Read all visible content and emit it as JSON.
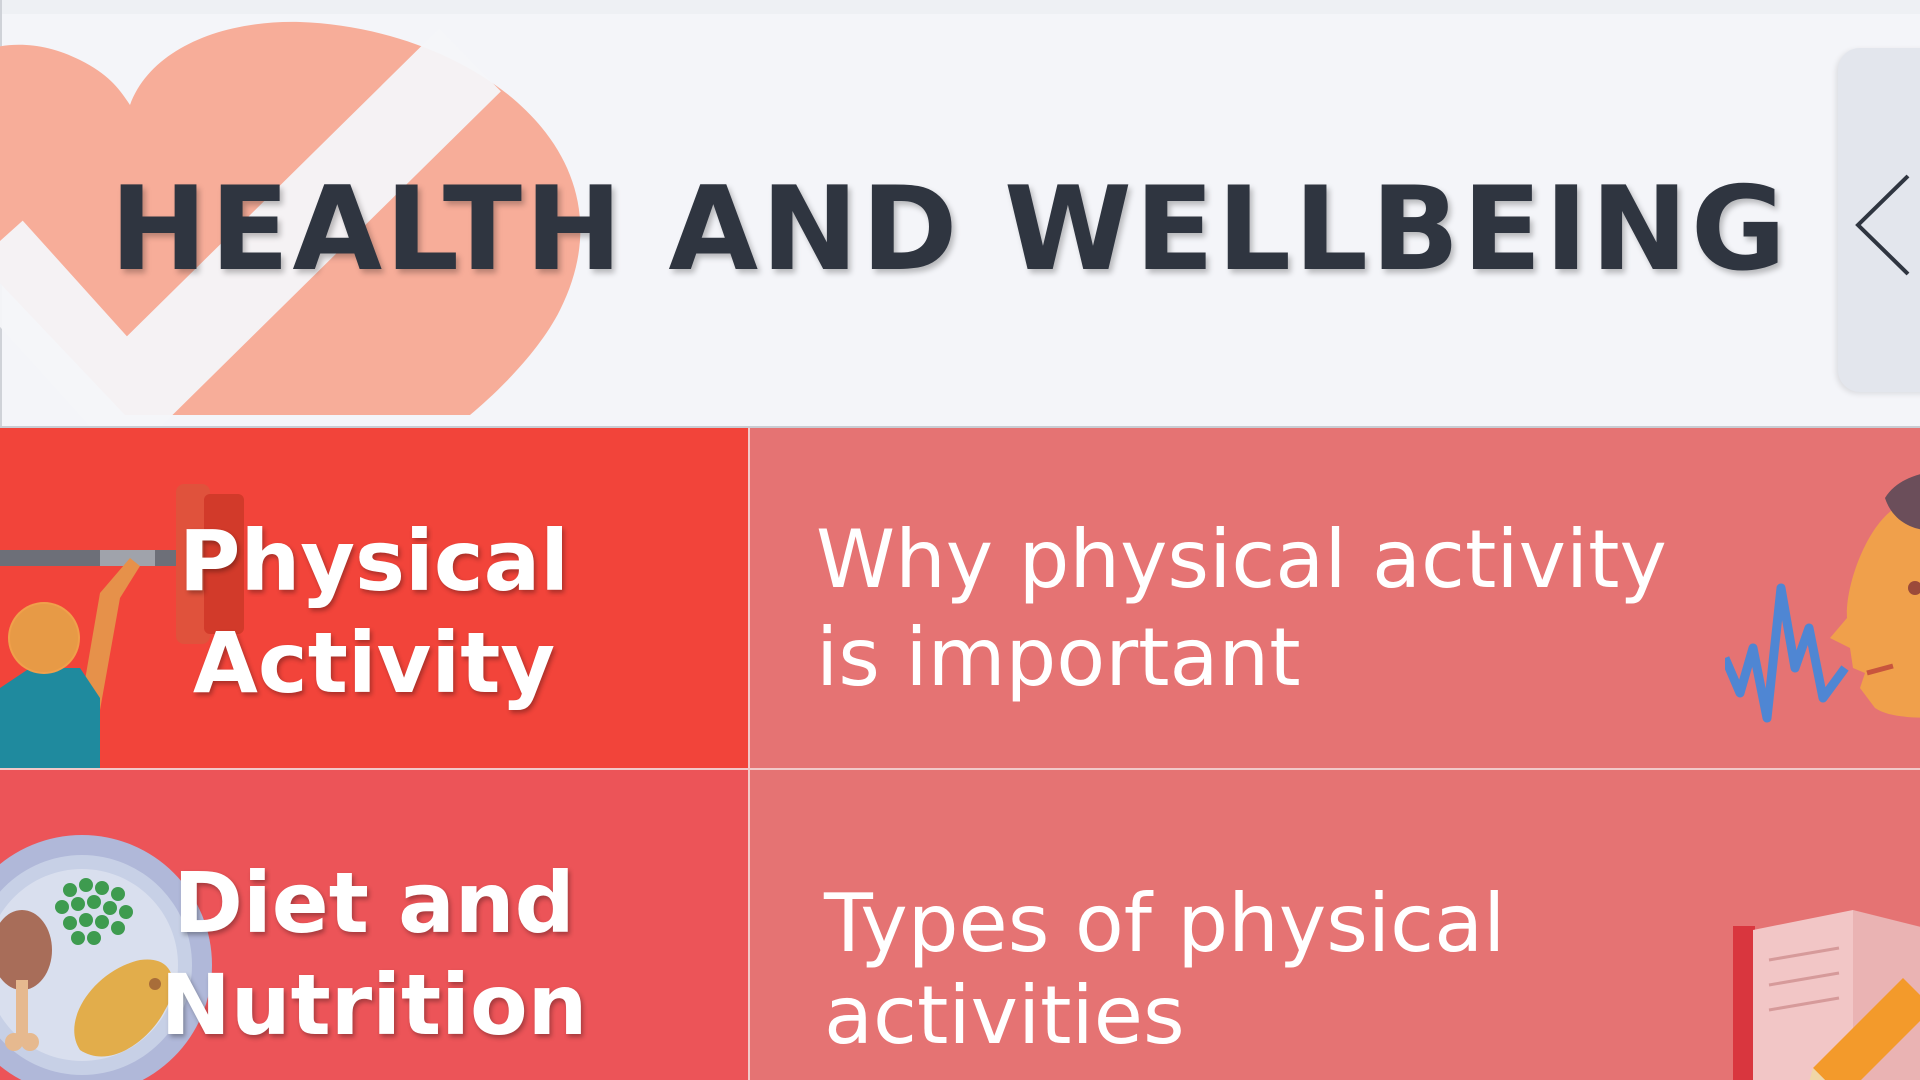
{
  "header": {
    "title": "HEALTH AND WELLBEING",
    "back_icon": "chevron-left-icon"
  },
  "topics": [
    {
      "category": {
        "label_line1": "Physical",
        "label_line2": "Activity",
        "icon": "weightlifter-icon",
        "color": "#f2443a"
      },
      "lesson": {
        "line1": "Why physical activity",
        "line2": "is important",
        "icon": "speaking-head-icon",
        "color": "#e57373"
      }
    },
    {
      "category": {
        "label_line1": "Diet and",
        "label_line2": "Nutrition",
        "icon": "food-plate-icon",
        "color": "#ec5458"
      },
      "lesson": {
        "line1": "Types of physical",
        "line2": "activities",
        "icon": "book-pencil-icon",
        "color": "#e57373"
      }
    }
  ],
  "colors": {
    "heart_logo": "#f7ad99",
    "title_text": "#2f3540",
    "header_bg": "#f4f5f9"
  }
}
